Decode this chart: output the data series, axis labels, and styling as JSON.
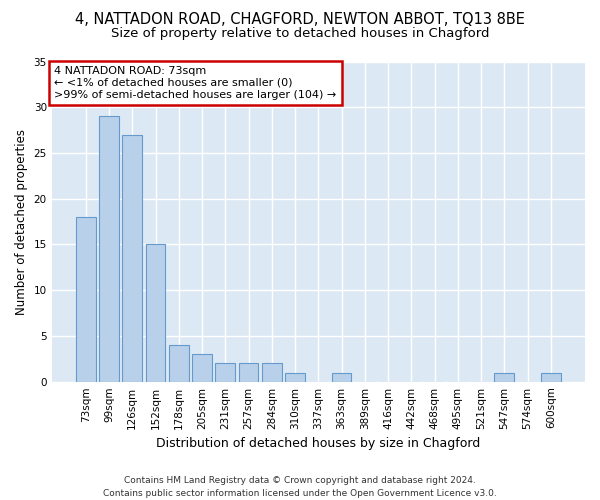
{
  "title1": "4, NATTADON ROAD, CHAGFORD, NEWTON ABBOT, TQ13 8BE",
  "title2": "Size of property relative to detached houses in Chagford",
  "xlabel": "Distribution of detached houses by size in Chagford",
  "ylabel": "Number of detached properties",
  "categories": [
    "73sqm",
    "99sqm",
    "126sqm",
    "152sqm",
    "178sqm",
    "205sqm",
    "231sqm",
    "257sqm",
    "284sqm",
    "310sqm",
    "337sqm",
    "363sqm",
    "389sqm",
    "416sqm",
    "442sqm",
    "468sqm",
    "495sqm",
    "521sqm",
    "547sqm",
    "574sqm",
    "600sqm"
  ],
  "values": [
    18,
    29,
    27,
    15,
    4,
    3,
    2,
    2,
    2,
    1,
    0,
    1,
    0,
    0,
    0,
    0,
    0,
    0,
    1,
    0,
    1
  ],
  "bar_color": "#b8d0ea",
  "bar_edge_color": "#6699cc",
  "annotation_line1": "4 NATTADON ROAD: 73sqm",
  "annotation_line2": "← <1% of detached houses are smaller (0)",
  "annotation_line3": ">99% of semi-detached houses are larger (104) →",
  "annotation_box_color": "white",
  "annotation_box_edge_color": "#cc0000",
  "ylim": [
    0,
    35
  ],
  "yticks": [
    0,
    5,
    10,
    15,
    20,
    25,
    30,
    35
  ],
  "footnote": "Contains HM Land Registry data © Crown copyright and database right 2024.\nContains public sector information licensed under the Open Government Licence v3.0.",
  "bg_color": "#ffffff",
  "plot_bg_color": "#dce9f5",
  "grid_color": "#ffffff",
  "title1_fontsize": 10.5,
  "title2_fontsize": 9.5,
  "xlabel_fontsize": 9,
  "ylabel_fontsize": 8.5,
  "tick_fontsize": 7.5,
  "annot_fontsize": 8,
  "footnote_fontsize": 6.5
}
